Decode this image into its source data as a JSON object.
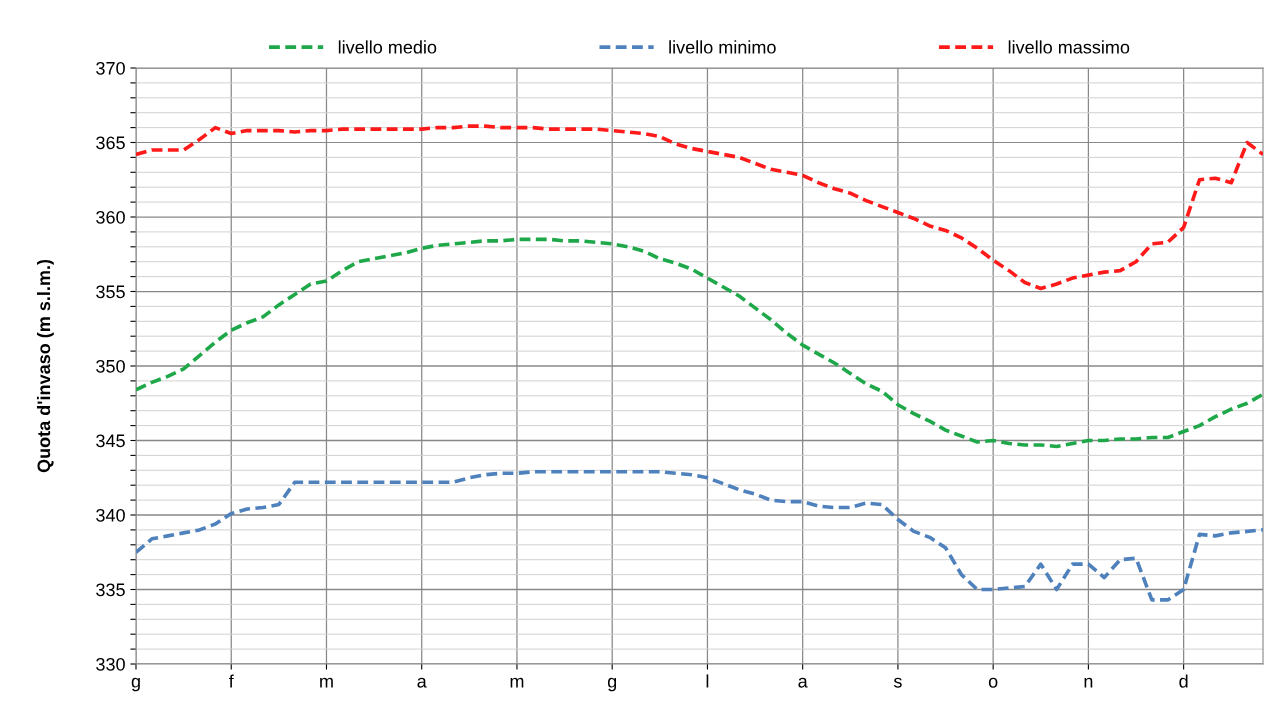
{
  "chart_data": {
    "type": "line",
    "ylabel": "Quota d'invaso (m s.l.m.)",
    "line_style": "dashed",
    "marker": "none",
    "grid": true,
    "legend": "top",
    "categories": [
      "g",
      null,
      null,
      null,
      null,
      null,
      "f",
      null,
      null,
      null,
      null,
      null,
      "m",
      null,
      null,
      null,
      null,
      null,
      "a",
      null,
      null,
      null,
      null,
      null,
      "m",
      null,
      null,
      null,
      null,
      null,
      "g",
      null,
      null,
      null,
      null,
      null,
      "l",
      null,
      null,
      null,
      null,
      null,
      "a",
      null,
      null,
      null,
      null,
      null,
      "s",
      null,
      null,
      null,
      null,
      null,
      "o",
      null,
      null,
      null,
      null,
      null,
      "n",
      null,
      null,
      null,
      null,
      null,
      "d",
      null,
      null,
      null,
      null,
      null
    ],
    "ylim": [
      330,
      370
    ],
    "yticks": [
      330,
      {
        "value": 331,
        "label": null
      },
      {
        "value": 332,
        "label": null
      },
      {
        "value": 333,
        "label": null
      },
      {
        "value": 334,
        "label": null
      },
      335,
      {
        "value": 336,
        "label": null
      },
      {
        "value": 337,
        "label": null
      },
      {
        "value": 338,
        "label": null
      },
      {
        "value": 339,
        "label": null
      },
      340,
      {
        "value": 341,
        "label": null
      },
      {
        "value": 342,
        "label": null
      },
      {
        "value": 343,
        "label": null
      },
      {
        "value": 344,
        "label": null
      },
      345,
      {
        "value": 346,
        "label": null
      },
      {
        "value": 347,
        "label": null
      },
      {
        "value": 348,
        "label": null
      },
      {
        "value": 349,
        "label": null
      },
      350,
      {
        "value": 351,
        "label": null
      },
      {
        "value": 352,
        "label": null
      },
      {
        "value": 353,
        "label": null
      },
      {
        "value": 354,
        "label": null
      },
      355,
      {
        "value": 356,
        "label": null
      },
      {
        "value": 357,
        "label": null
      },
      {
        "value": 358,
        "label": null
      },
      {
        "value": 359,
        "label": null
      },
      360,
      {
        "value": 361,
        "label": null
      },
      {
        "value": 362,
        "label": null
      },
      {
        "value": 363,
        "label": null
      },
      {
        "value": 364,
        "label": null
      },
      365,
      {
        "value": 366,
        "label": null
      },
      {
        "value": 367,
        "label": null
      },
      {
        "value": 368,
        "label": null
      },
      {
        "value": 369,
        "label": null
      },
      370
    ],
    "series": [
      {
        "name": "livello medio",
        "color": "#1fa84a",
        "values": [
          348.4,
          348.9,
          349.3,
          349.8,
          350.7,
          351.6,
          352.4,
          352.9,
          353.3,
          354.1,
          354.8,
          355.5,
          355.7,
          356.4,
          357.0,
          357.2,
          357.4,
          357.6,
          357.9,
          358.1,
          358.2,
          358.3,
          358.4,
          358.4,
          358.5,
          358.5,
          358.5,
          358.4,
          358.4,
          358.3,
          358.2,
          358.0,
          357.7,
          357.2,
          356.9,
          356.5,
          355.9,
          355.3,
          354.7,
          353.9,
          353.1,
          352.2,
          351.4,
          350.8,
          350.2,
          349.5,
          348.8,
          348.3,
          347.4,
          346.8,
          346.3,
          345.7,
          345.3,
          344.9,
          345.0,
          344.8,
          344.7,
          344.7,
          344.6,
          344.8,
          345.0,
          345.0,
          345.1,
          345.1,
          345.2,
          345.2,
          345.6,
          346.0,
          346.6,
          347.1,
          347.5,
          348.1
        ]
      },
      {
        "name": "livello minimo",
        "color": "#4f81bd",
        "values": [
          337.5,
          338.4,
          338.6,
          338.8,
          339.0,
          339.4,
          340.1,
          340.4,
          340.5,
          340.7,
          342.2,
          342.2,
          342.2,
          342.2,
          342.2,
          342.2,
          342.2,
          342.2,
          342.2,
          342.2,
          342.2,
          342.5,
          342.7,
          342.8,
          342.8,
          342.9,
          342.9,
          342.9,
          342.9,
          342.9,
          342.9,
          342.9,
          342.9,
          342.9,
          342.8,
          342.7,
          342.5,
          342.1,
          341.7,
          341.4,
          341.0,
          340.9,
          340.9,
          340.6,
          340.5,
          340.5,
          340.8,
          340.7,
          339.7,
          338.9,
          338.5,
          337.8,
          336.0,
          335.0,
          335.0,
          335.1,
          335.2,
          336.7,
          335.0,
          336.7,
          336.7,
          335.8,
          337.0,
          337.1,
          334.3,
          334.3,
          335.0,
          338.7,
          338.6,
          338.8,
          338.9,
          339.0
        ]
      },
      {
        "name": "livello massimo",
        "color": "#ff1a1a",
        "values": [
          364.2,
          364.5,
          364.5,
          364.5,
          365.2,
          366.0,
          365.6,
          365.8,
          365.8,
          365.8,
          365.7,
          365.8,
          365.8,
          365.9,
          365.9,
          365.9,
          365.9,
          365.9,
          365.9,
          366.0,
          366.0,
          366.1,
          366.1,
          366.0,
          366.0,
          366.0,
          365.9,
          365.9,
          365.9,
          365.9,
          365.8,
          365.7,
          365.6,
          365.4,
          364.9,
          364.6,
          364.4,
          364.2,
          364.0,
          363.6,
          363.2,
          363.0,
          362.8,
          362.3,
          361.9,
          361.6,
          361.1,
          360.7,
          360.3,
          359.9,
          359.4,
          359.1,
          358.6,
          357.9,
          357.1,
          356.4,
          355.6,
          355.2,
          355.5,
          355.9,
          356.1,
          356.3,
          356.4,
          357.0,
          358.2,
          358.3,
          359.3,
          362.5,
          362.6,
          362.3,
          365.0,
          364.2
        ]
      }
    ]
  }
}
